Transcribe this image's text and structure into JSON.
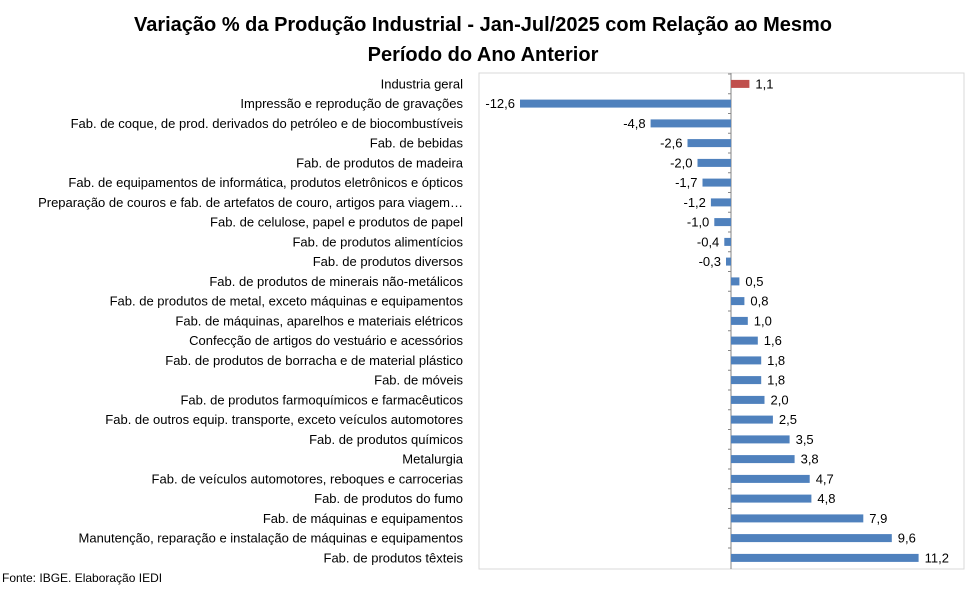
{
  "chart_data": {
    "type": "bar",
    "orientation": "horizontal",
    "title_line1": "Variação % da Produção Industrial - Jan-Jul/2025 com Relação ao Mesmo",
    "title_line2": "Período do Ano Anterior",
    "xlabel": "",
    "ylabel": "",
    "xlim": [
      -13.5,
      20
    ],
    "grid": false,
    "legend": "none",
    "categories": [
      "Industria geral",
      "Impressão e reprodução de gravações",
      "Fab. de coque, de prod. derivados do petróleo e de biocombustíveis",
      "Fab. de bebidas",
      "Fab. de produtos de madeira",
      "Fab. de equipamentos de informática, produtos eletrônicos e ópticos",
      "Preparação de couros e fab. de artefatos de couro, artigos para viagem…",
      "Fab. de celulose, papel e produtos de papel",
      "Fab. de produtos alimentícios",
      "Fab. de produtos diversos",
      "Fab. de produtos de minerais não-metálicos",
      "Fab. de produtos de metal, exceto máquinas e equipamentos",
      "Fab. de máquinas, aparelhos e materiais elétricos",
      "Confecção de artigos do vestuário e acessórios",
      "Fab. de produtos de borracha e de material plástico",
      "Fab. de móveis",
      "Fab. de produtos farmoquímicos e farmacêuticos",
      "Fab. de outros equip. transporte, exceto veículos automotores",
      "Fab. de produtos químicos",
      "Metalurgia",
      "Fab. de veículos automotores, reboques e carrocerias",
      "Fab. de produtos do fumo",
      "Fab. de máquinas e equipamentos",
      "Manutenção, reparação e instalação de máquinas e equipamentos",
      "Fab. de produtos têxteis"
    ],
    "values": [
      1.1,
      -12.6,
      -4.8,
      -2.6,
      -2.0,
      -1.7,
      -1.2,
      -1.0,
      -0.4,
      -0.3,
      0.5,
      0.8,
      1.0,
      1.6,
      1.8,
      1.8,
      2.0,
      2.5,
      3.5,
      3.8,
      4.7,
      4.8,
      7.9,
      9.6,
      11.2
    ],
    "labels": [
      "1,1",
      "-12,6",
      "-4,8",
      "-2,6",
      "-2,0",
      "-1,7",
      "-1,2",
      "-1,0",
      "-0,4",
      "-0,3",
      "0,5",
      "0,8",
      "1,0",
      "1,6",
      "1,8",
      "1,8",
      "2,0",
      "2,5",
      "3,5",
      "3,8",
      "4,7",
      "4,8",
      "7,9",
      "9,6",
      "11,2"
    ],
    "highlight_index": 0,
    "colors": {
      "highlight": "#C0504D",
      "bar": "#4F81BD",
      "axis": "#868686",
      "frame": "#D9D9D9"
    }
  },
  "source": "Fonte: IBGE. Elaboração IEDI"
}
